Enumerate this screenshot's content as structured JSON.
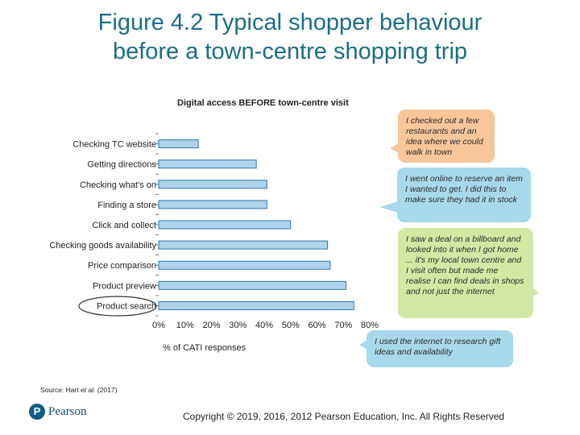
{
  "slide": {
    "title_line1": "Figure 4.2 Typical shopper behaviour",
    "title_line2": "before a town-centre shopping trip",
    "source_prefix": "Source: Hart ",
    "source_italic": "et al.",
    "source_suffix": " (2017)",
    "logo_text": "Pearson",
    "logo_mark": "P",
    "copyright": "Copyright © 2019, 2016, 2012 Pearson Education, Inc. All Rights Reserved"
  },
  "chart_data": {
    "type": "bar",
    "orientation": "horizontal",
    "title": "Digital access BEFORE town-centre visit",
    "xlabel": "% of CATI responses",
    "ylabel": "",
    "xlim": [
      0,
      80
    ],
    "xticks": [
      "0%",
      "10%",
      "20%",
      "30%",
      "40%",
      "50%",
      "60%",
      "70%",
      "80%"
    ],
    "categories": [
      "Checking TC website",
      "Getting directions",
      "Checking what's on",
      "Finding a store",
      "Click and collect",
      "Checking goods availability",
      "Price comparison",
      "Product preview",
      "Product search"
    ],
    "values": [
      15,
      37,
      41,
      41,
      50,
      64,
      65,
      71,
      74
    ],
    "highlighted_category": "Product search",
    "bar_color": "#aed3ea",
    "bar_edge_color": "#2e78b0"
  },
  "bubbles": [
    {
      "text": "I checked out a few restaurants and an idea where we could walk in town",
      "color": "#f8c69b"
    },
    {
      "text": "I went online to reserve an item I wanted to get. I did this to make sure they had it in stock",
      "color": "#a8d8eb"
    },
    {
      "text": "I saw a deal on a billboard and looked into it when I got home ... it's my local town centre and I visit often but made me realise I can find deals in shops and not just the internet",
      "color": "#d3e8a5"
    },
    {
      "text": "I used the internet to research gift ideas and availability",
      "color": "#a8d8eb"
    }
  ],
  "colors": {
    "title": "#1a6e86",
    "pearson_blue": "#0d5d86"
  }
}
